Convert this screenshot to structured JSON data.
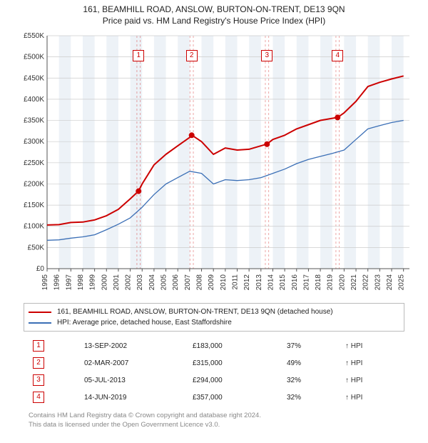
{
  "title_line1": "161, BEAMHILL ROAD, ANSLOW, BURTON-ON-TRENT, DE13 9QN",
  "title_line2": "Price paid vs. HM Land Registry's House Price Index (HPI)",
  "chart": {
    "x_years": [
      1995,
      1996,
      1997,
      1998,
      1999,
      2000,
      2001,
      2002,
      2003,
      2004,
      2005,
      2006,
      2007,
      2008,
      2009,
      2010,
      2011,
      2012,
      2013,
      2014,
      2015,
      2016,
      2017,
      2018,
      2019,
      2020,
      2021,
      2022,
      2023,
      2024,
      2025
    ],
    "y_ticks": [
      0,
      50000,
      100000,
      150000,
      200000,
      250000,
      300000,
      350000,
      400000,
      450000,
      500000,
      550000
    ],
    "y_tick_labels": [
      "£0",
      "£50K",
      "£100K",
      "£150K",
      "£200K",
      "£250K",
      "£300K",
      "£350K",
      "£400K",
      "£450K",
      "£500K",
      "£550K"
    ],
    "ylim": [
      0,
      550000
    ],
    "xlim": [
      1995,
      2025.5
    ],
    "background_color": "#ffffff",
    "band_color": "#edf2f7",
    "grid_color": "#cccccc",
    "axis_color": "#555555",
    "series": [
      {
        "name": "161, BEAMHILL ROAD, ANSLOW, BURTON-ON-TRENT, DE13 9QN (detached house)",
        "color": "#cc0000",
        "width": 2,
        "points": [
          [
            1995,
            103000
          ],
          [
            1996,
            104000
          ],
          [
            1997,
            109000
          ],
          [
            1998,
            110000
          ],
          [
            1999,
            115000
          ],
          [
            2000,
            125000
          ],
          [
            2001,
            140000
          ],
          [
            2002,
            165000
          ],
          [
            2002.7,
            183000
          ],
          [
            2003,
            200000
          ],
          [
            2004,
            245000
          ],
          [
            2005,
            270000
          ],
          [
            2006,
            290000
          ],
          [
            2007,
            310000
          ],
          [
            2007.2,
            315000
          ],
          [
            2008,
            300000
          ],
          [
            2009,
            270000
          ],
          [
            2010,
            285000
          ],
          [
            2011,
            280000
          ],
          [
            2012,
            282000
          ],
          [
            2013,
            290000
          ],
          [
            2013.5,
            294000
          ],
          [
            2014,
            305000
          ],
          [
            2015,
            315000
          ],
          [
            2016,
            330000
          ],
          [
            2017,
            340000
          ],
          [
            2018,
            350000
          ],
          [
            2019,
            355000
          ],
          [
            2019.45,
            357000
          ],
          [
            2020,
            368000
          ],
          [
            2021,
            395000
          ],
          [
            2022,
            430000
          ],
          [
            2023,
            440000
          ],
          [
            2024,
            448000
          ],
          [
            2025,
            455000
          ]
        ]
      },
      {
        "name": "HPI: Average price, detached house, East Staffordshire",
        "color": "#3b6fb6",
        "width": 1.3,
        "points": [
          [
            1995,
            67000
          ],
          [
            1996,
            68000
          ],
          [
            1997,
            72000
          ],
          [
            1998,
            75000
          ],
          [
            1999,
            80000
          ],
          [
            2000,
            92000
          ],
          [
            2001,
            105000
          ],
          [
            2002,
            120000
          ],
          [
            2003,
            145000
          ],
          [
            2004,
            175000
          ],
          [
            2005,
            200000
          ],
          [
            2006,
            215000
          ],
          [
            2007,
            230000
          ],
          [
            2008,
            225000
          ],
          [
            2009,
            200000
          ],
          [
            2010,
            210000
          ],
          [
            2011,
            208000
          ],
          [
            2012,
            210000
          ],
          [
            2013,
            215000
          ],
          [
            2014,
            225000
          ],
          [
            2015,
            235000
          ],
          [
            2016,
            248000
          ],
          [
            2017,
            258000
          ],
          [
            2018,
            265000
          ],
          [
            2019,
            272000
          ],
          [
            2020,
            280000
          ],
          [
            2021,
            305000
          ],
          [
            2022,
            330000
          ],
          [
            2023,
            338000
          ],
          [
            2024,
            345000
          ],
          [
            2025,
            350000
          ]
        ]
      }
    ],
    "sale_markers": [
      {
        "n": "1",
        "year": 2002.7,
        "price": 183000
      },
      {
        "n": "2",
        "year": 2007.17,
        "price": 315000
      },
      {
        "n": "3",
        "year": 2013.51,
        "price": 294000
      },
      {
        "n": "4",
        "year": 2019.45,
        "price": 357000
      }
    ],
    "marker_fill": "#cc0000",
    "marker_band_color": "rgba(204,0,0,0.35)"
  },
  "legend": [
    {
      "color": "#cc0000",
      "label": "161, BEAMHILL ROAD, ANSLOW, BURTON-ON-TRENT, DE13 9QN (detached house)"
    },
    {
      "color": "#3b6fb6",
      "label": "HPI: Average price, detached house, East Staffordshire"
    }
  ],
  "transactions": [
    {
      "n": "1",
      "date": "13-SEP-2002",
      "price": "£183,000",
      "pct": "37%",
      "note": "↑ HPI"
    },
    {
      "n": "2",
      "date": "02-MAR-2007",
      "price": "£315,000",
      "pct": "49%",
      "note": "↑ HPI"
    },
    {
      "n": "3",
      "date": "05-JUL-2013",
      "price": "£294,000",
      "pct": "32%",
      "note": "↑ HPI"
    },
    {
      "n": "4",
      "date": "14-JUN-2019",
      "price": "£357,000",
      "pct": "32%",
      "note": "↑ HPI"
    }
  ],
  "footer_line1": "Contains HM Land Registry data © Crown copyright and database right 2024.",
  "footer_line2": "This data is licensed under the Open Government Licence v3.0."
}
